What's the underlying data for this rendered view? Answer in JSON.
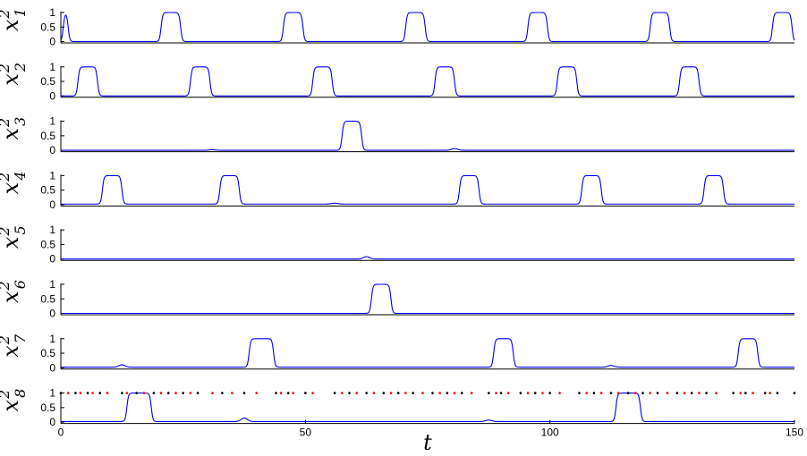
{
  "chart_data": {
    "type": "line",
    "xlabel": "t",
    "xlim": [
      0,
      150
    ],
    "x_ticks": [
      "0",
      "50",
      "100",
      "150"
    ],
    "y_ticks": [
      "0",
      "0.5",
      "1"
    ],
    "ylim": [
      0,
      1
    ],
    "line_color": "#0000ff",
    "marker_colors": {
      "black": "#000000",
      "red": "#ff0000"
    },
    "panels": [
      {
        "label": "x",
        "sup": "2",
        "sub": "1",
        "baseline": 0.0,
        "pulses": [
          [
            0,
            2
          ],
          [
            20,
            25
          ],
          [
            45,
            50
          ],
          [
            70,
            75
          ],
          [
            95,
            100
          ],
          [
            120,
            125
          ],
          [
            145,
            150
          ]
        ],
        "bumps": []
      },
      {
        "label": "x",
        "sup": "2",
        "sub": "2",
        "baseline": 0.0,
        "pulses": [
          [
            3,
            8
          ],
          [
            26,
            31
          ],
          [
            51,
            56
          ],
          [
            76,
            81
          ],
          [
            101,
            106
          ],
          [
            126,
            131
          ]
        ],
        "bumps": []
      },
      {
        "label": "x",
        "sup": "2",
        "sub": "3",
        "baseline": 0.0,
        "pulses": [
          [
            57,
            62
          ]
        ],
        "bumps": [
          [
            80.5,
            0.06
          ],
          [
            31,
            0.02
          ]
        ]
      },
      {
        "label": "x",
        "sup": "2",
        "sub": "4",
        "baseline": 0.02,
        "pulses": [
          [
            8,
            13
          ],
          [
            32,
            37
          ],
          [
            81,
            86
          ],
          [
            106,
            111
          ],
          [
            131,
            136
          ]
        ],
        "bumps": [
          [
            56,
            0.03
          ]
        ]
      },
      {
        "label": "x",
        "sup": "2",
        "sub": "5",
        "baseline": 0.0,
        "pulses": [],
        "bumps": [
          [
            62.5,
            0.08
          ]
        ]
      },
      {
        "label": "x",
        "sup": "2",
        "sub": "6",
        "baseline": 0.0,
        "pulses": [
          [
            63,
            68
          ]
        ],
        "bumps": []
      },
      {
        "label": "x",
        "sup": "2",
        "sub": "7",
        "baseline": 0.02,
        "pulses": [
          [
            38,
            44
          ],
          [
            88,
            93
          ],
          [
            138,
            143
          ]
        ],
        "bumps": [
          [
            12.5,
            0.08
          ],
          [
            112.5,
            0.06
          ]
        ]
      },
      {
        "label": "x",
        "sup": "2",
        "sub": "8",
        "baseline": 0.02,
        "pulses": [
          [
            13,
            19
          ],
          [
            113,
            119
          ]
        ],
        "bumps": [
          [
            37.5,
            0.12
          ],
          [
            87.5,
            0.05
          ]
        ]
      }
    ],
    "marker_points": {
      "y": 1,
      "black_x": [
        0,
        3,
        5.5,
        8,
        12.5,
        15.5,
        19,
        22,
        25,
        28,
        33,
        37.5,
        44,
        46.5,
        50,
        56,
        59,
        62.5,
        66,
        69,
        72,
        76,
        79,
        82,
        87.5,
        90,
        94,
        97,
        100,
        106,
        109,
        112.5,
        116,
        119,
        122,
        126,
        129,
        132,
        137.5,
        140,
        144,
        146.5,
        150
      ],
      "red_x": [
        1.5,
        4,
        6.5,
        9.5,
        13.5,
        17,
        20.5,
        23.5,
        26.5,
        31,
        35,
        40,
        45,
        47.5,
        51.5,
        57.5,
        60.5,
        64,
        67.5,
        70.5,
        74,
        77.5,
        80.5,
        84,
        89,
        91.5,
        95.5,
        98.5,
        102,
        107.5,
        110.5,
        114,
        117.5,
        120.5,
        124,
        127.5,
        130.5,
        134,
        139,
        141.5,
        145
      ]
    }
  }
}
